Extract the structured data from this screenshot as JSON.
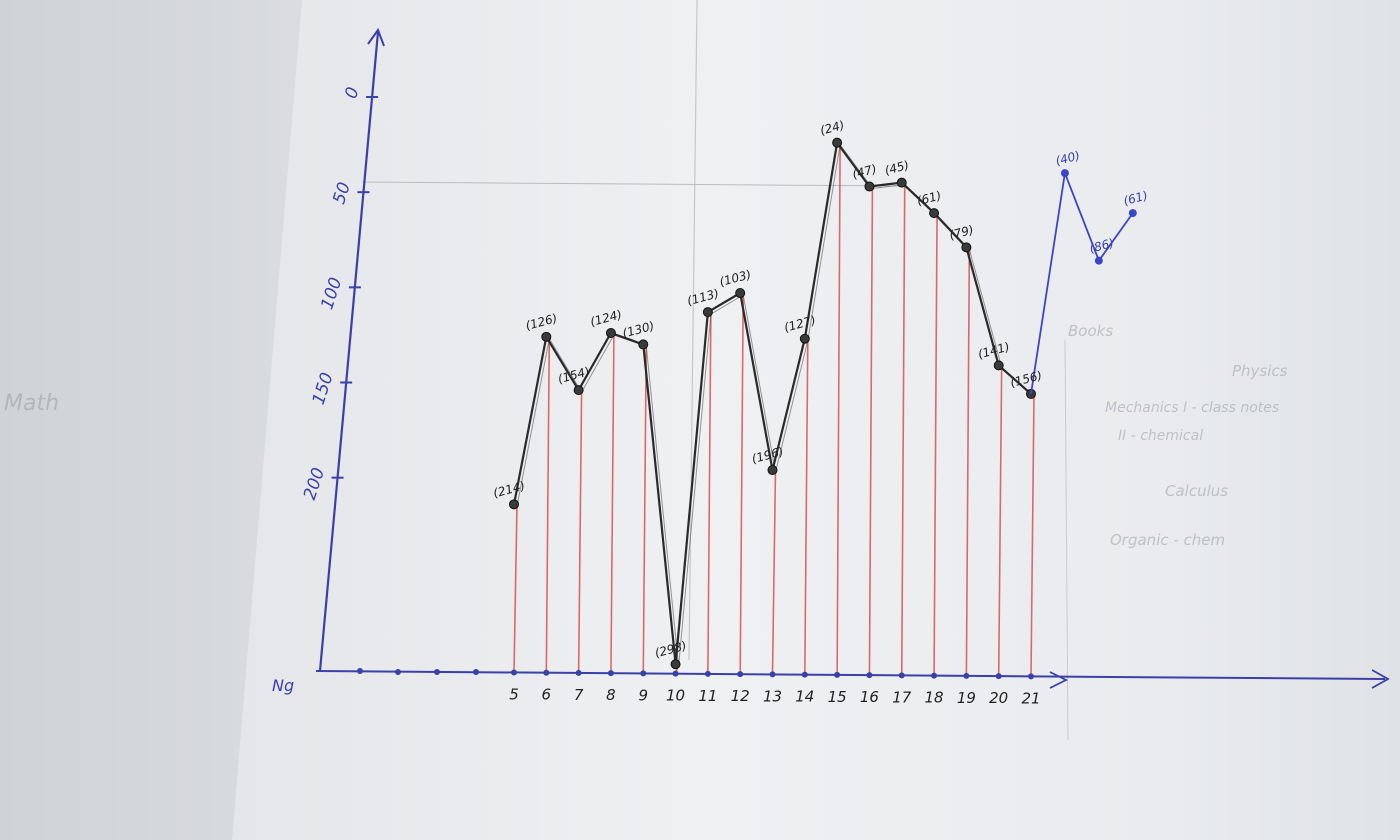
{
  "chart_data": {
    "type": "line",
    "x": [
      5,
      6,
      7,
      8,
      9,
      10,
      11,
      12,
      13,
      14,
      15,
      16,
      17,
      18,
      19,
      20,
      21
    ],
    "series": [
      {
        "values": [
          214,
          126,
          154,
          124,
          130,
          298,
          113,
          103,
          196,
          127,
          24,
          47,
          45,
          61,
          79,
          141,
          156
        ]
      }
    ],
    "y_tick_labels": [
      "0",
      "50",
      "100",
      "150",
      "200"
    ],
    "x_tick_labels": [
      "5",
      "6",
      "7",
      "8",
      "9",
      "10",
      "11",
      "12",
      "13",
      "14",
      "15",
      "16",
      "17",
      "18",
      "19",
      "20",
      "21"
    ],
    "origin_label": "Ng",
    "point_labels": [
      "(214)",
      "(126)",
      "(154)",
      "(124)",
      "(130)",
      "(298)",
      "(113)",
      "(103)",
      "(196)",
      "(127)",
      "(24)",
      "(47)",
      "(45)",
      "(61)",
      "(79)",
      "(141)",
      "(156)"
    ],
    "extra_points": [
      {
        "label": "(40)",
        "value": 40
      },
      {
        "label": "(86)",
        "value": 86
      },
      {
        "label": "(61)",
        "value": 61
      }
    ],
    "ylim": [
      0,
      300
    ],
    "y_axis_direction": "inverted",
    "grid": false,
    "colors": {
      "axes": "#3c3fa6",
      "line": "#2a2a2a",
      "drop_lines": "#d9534f",
      "blue_line": "#3b46c4"
    }
  },
  "notes_text": {
    "lines": [
      "Books",
      "Physics",
      "Mechanics I - class notes",
      "II - chemical",
      "Calculus",
      "Organic - chem",
      "Math"
    ]
  }
}
